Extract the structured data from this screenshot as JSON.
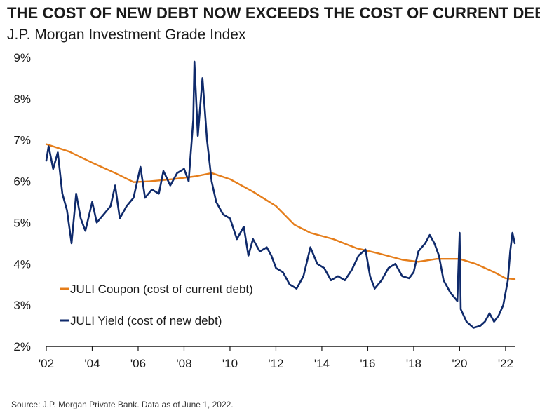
{
  "title": "THE COST OF NEW DEBT NOW EXCEEDS THE COST OF CURRENT DEBT",
  "subtitle": "J.P. Morgan Investment Grade Index",
  "source": "Source: J.P. Morgan Private Bank. Data as of June 1, 2022.",
  "colors": {
    "coupon": "#E57D1A",
    "yield": "#0F2A6B",
    "axis": "#1a1a1a"
  },
  "chart_data": {
    "type": "line",
    "title": "THE COST OF NEW DEBT NOW EXCEEDS THE COST OF CURRENT DEBT",
    "subtitle": "J.P. Morgan Investment Grade Index",
    "xlabel": "",
    "ylabel": "",
    "xlim": [
      2002,
      2022.4
    ],
    "ylim": [
      2,
      9
    ],
    "x_tick_values": [
      2002,
      2004,
      2006,
      2008,
      2010,
      2012,
      2014,
      2016,
      2018,
      2020,
      2022
    ],
    "x_tick_labels": [
      "'02",
      "'04",
      "'06",
      "'08",
      "'10",
      "'12",
      "'14",
      "'16",
      "'18",
      "'20",
      "'22"
    ],
    "y_tick_values": [
      2,
      3,
      4,
      5,
      6,
      7,
      8,
      9
    ],
    "y_tick_labels": [
      "2%",
      "3%",
      "4%",
      "5%",
      "6%",
      "7%",
      "8%",
      "9%"
    ],
    "grid": false,
    "legend_position": "lower-left",
    "series": [
      {
        "name": "JULI Coupon (cost of current debt)",
        "color": "#E57D1A",
        "points": [
          [
            2002.0,
            6.9
          ],
          [
            2003.0,
            6.72
          ],
          [
            2004.0,
            6.45
          ],
          [
            2005.0,
            6.2
          ],
          [
            2005.8,
            5.98
          ],
          [
            2006.5,
            6.0
          ],
          [
            2007.5,
            6.05
          ],
          [
            2008.5,
            6.12
          ],
          [
            2009.2,
            6.2
          ],
          [
            2010.0,
            6.05
          ],
          [
            2011.0,
            5.75
          ],
          [
            2012.0,
            5.4
          ],
          [
            2012.8,
            4.95
          ],
          [
            2013.5,
            4.75
          ],
          [
            2014.5,
            4.6
          ],
          [
            2015.5,
            4.38
          ],
          [
            2016.5,
            4.25
          ],
          [
            2017.5,
            4.1
          ],
          [
            2018.2,
            4.05
          ],
          [
            2019.0,
            4.12
          ],
          [
            2020.0,
            4.12
          ],
          [
            2020.7,
            4.0
          ],
          [
            2021.5,
            3.8
          ],
          [
            2022.0,
            3.65
          ],
          [
            2022.4,
            3.63
          ]
        ]
      },
      {
        "name": "JULI Yield (cost of new debt)",
        "color": "#0F2A6B",
        "points": [
          [
            2002.0,
            6.5
          ],
          [
            2002.1,
            6.85
          ],
          [
            2002.3,
            6.3
          ],
          [
            2002.5,
            6.7
          ],
          [
            2002.7,
            5.7
          ],
          [
            2002.9,
            5.3
          ],
          [
            2003.1,
            4.5
          ],
          [
            2003.3,
            5.7
          ],
          [
            2003.5,
            5.1
          ],
          [
            2003.7,
            4.8
          ],
          [
            2004.0,
            5.5
          ],
          [
            2004.2,
            5.0
          ],
          [
            2004.5,
            5.2
          ],
          [
            2004.8,
            5.4
          ],
          [
            2005.0,
            5.9
          ],
          [
            2005.2,
            5.1
          ],
          [
            2005.5,
            5.4
          ],
          [
            2005.8,
            5.6
          ],
          [
            2006.0,
            6.1
          ],
          [
            2006.1,
            6.35
          ],
          [
            2006.3,
            5.6
          ],
          [
            2006.6,
            5.8
          ],
          [
            2006.9,
            5.7
          ],
          [
            2007.1,
            6.25
          ],
          [
            2007.4,
            5.9
          ],
          [
            2007.7,
            6.2
          ],
          [
            2008.0,
            6.3
          ],
          [
            2008.2,
            6.0
          ],
          [
            2008.4,
            7.5
          ],
          [
            2008.45,
            8.9
          ],
          [
            2008.6,
            7.1
          ],
          [
            2008.8,
            8.5
          ],
          [
            2009.0,
            7.0
          ],
          [
            2009.2,
            6.0
          ],
          [
            2009.4,
            5.5
          ],
          [
            2009.7,
            5.2
          ],
          [
            2010.0,
            5.1
          ],
          [
            2010.3,
            4.6
          ],
          [
            2010.6,
            4.9
          ],
          [
            2010.8,
            4.2
          ],
          [
            2011.0,
            4.6
          ],
          [
            2011.3,
            4.3
          ],
          [
            2011.6,
            4.4
          ],
          [
            2011.8,
            4.2
          ],
          [
            2012.0,
            3.9
          ],
          [
            2012.3,
            3.8
          ],
          [
            2012.6,
            3.5
          ],
          [
            2012.9,
            3.4
          ],
          [
            2013.2,
            3.7
          ],
          [
            2013.5,
            4.4
          ],
          [
            2013.8,
            4.0
          ],
          [
            2014.1,
            3.9
          ],
          [
            2014.4,
            3.6
          ],
          [
            2014.7,
            3.7
          ],
          [
            2015.0,
            3.6
          ],
          [
            2015.3,
            3.85
          ],
          [
            2015.6,
            4.2
          ],
          [
            2015.9,
            4.35
          ],
          [
            2016.1,
            3.7
          ],
          [
            2016.3,
            3.4
          ],
          [
            2016.6,
            3.6
          ],
          [
            2016.9,
            3.9
          ],
          [
            2017.2,
            4.0
          ],
          [
            2017.5,
            3.7
          ],
          [
            2017.8,
            3.65
          ],
          [
            2018.0,
            3.8
          ],
          [
            2018.2,
            4.3
          ],
          [
            2018.5,
            4.5
          ],
          [
            2018.7,
            4.7
          ],
          [
            2018.9,
            4.5
          ],
          [
            2019.1,
            4.2
          ],
          [
            2019.3,
            3.6
          ],
          [
            2019.6,
            3.3
          ],
          [
            2019.9,
            3.1
          ],
          [
            2020.0,
            4.75
          ],
          [
            2020.05,
            2.9
          ],
          [
            2020.3,
            2.6
          ],
          [
            2020.6,
            2.45
          ],
          [
            2020.9,
            2.5
          ],
          [
            2021.1,
            2.6
          ],
          [
            2021.3,
            2.8
          ],
          [
            2021.5,
            2.6
          ],
          [
            2021.7,
            2.75
          ],
          [
            2021.9,
            3.0
          ],
          [
            2022.1,
            3.6
          ],
          [
            2022.2,
            4.3
          ],
          [
            2022.3,
            4.75
          ],
          [
            2022.4,
            4.5
          ]
        ]
      }
    ]
  }
}
